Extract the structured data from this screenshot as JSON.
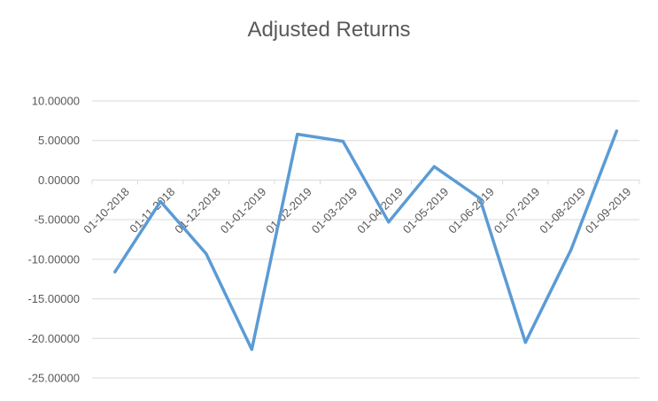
{
  "chart_data": {
    "type": "line",
    "title": "Adjusted Returns",
    "xlabel": "",
    "ylabel": "",
    "categories": [
      "01-10-2018",
      "01-11-2018",
      "01-12-2018",
      "01-01-2019",
      "01-02-2019",
      "01-03-2019",
      "01-04-2019",
      "01-05-2019",
      "01-06-2019",
      "01-07-2019",
      "01-08-2019",
      "01-09-2019"
    ],
    "series": [
      {
        "values": [
          -11.6,
          -2.7,
          -9.3,
          -21.4,
          5.8,
          4.9,
          -5.3,
          1.7,
          -2.3,
          -20.5,
          -8.8,
          6.2
        ],
        "color": "#5B9BD5"
      }
    ],
    "ylim": [
      -25,
      10
    ],
    "yticks": [
      10,
      5,
      0,
      -5,
      -10,
      -15,
      -20,
      -25
    ],
    "ytick_labels": [
      "10.00000",
      "5.00000",
      "0.00000",
      "-5.00000",
      "-10.00000",
      "-15.00000",
      "-20.00000",
      "-25.00000"
    ],
    "grid": true,
    "legend": "none",
    "gridline_color": "#D9D9D9",
    "text_color": "#595959"
  }
}
